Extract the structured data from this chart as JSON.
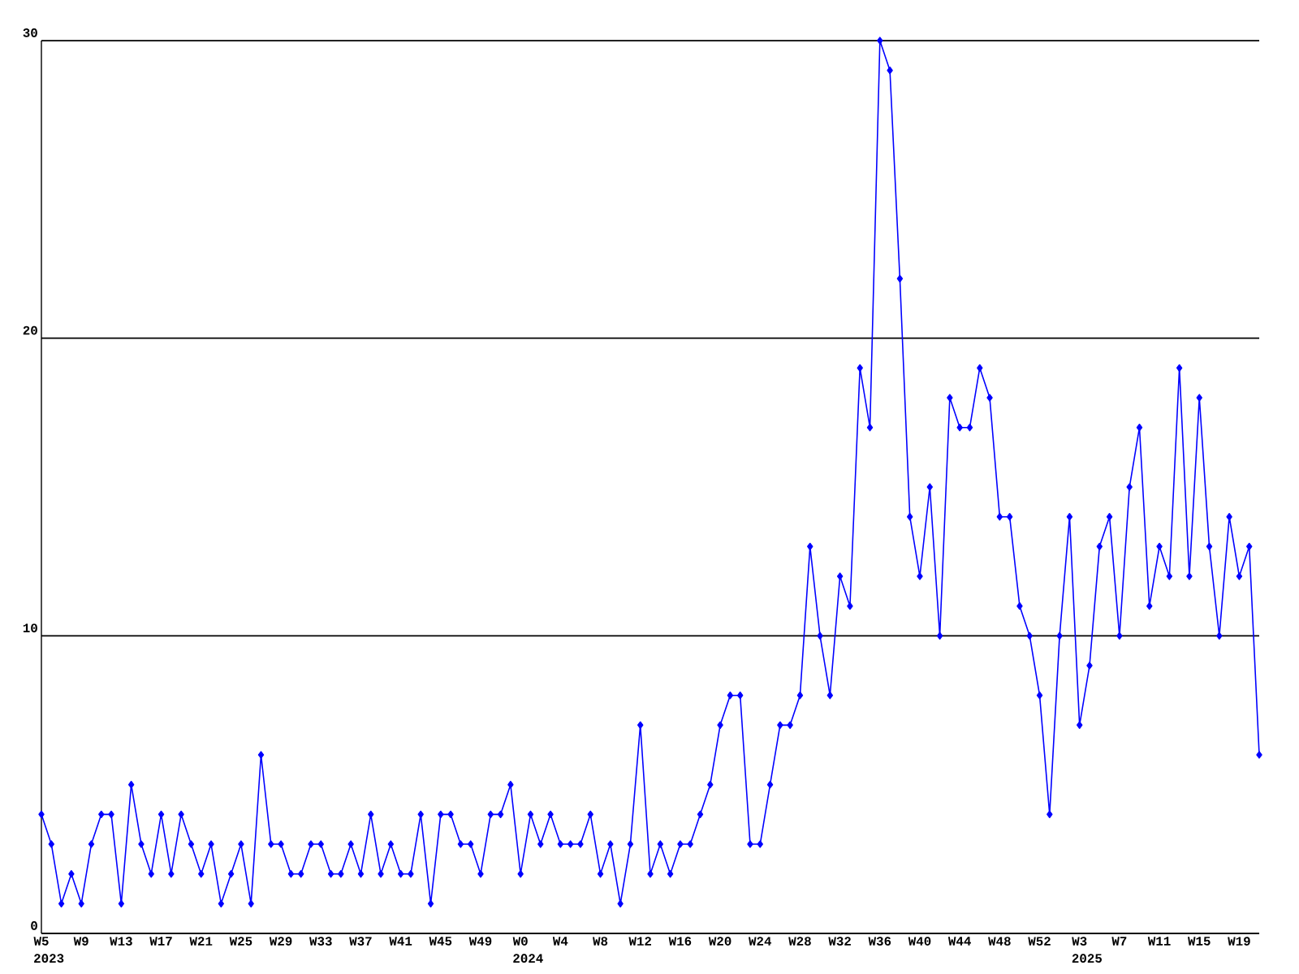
{
  "chart_data": {
    "type": "line",
    "categories": [
      "W5",
      null,
      null,
      null,
      "W9",
      null,
      null,
      null,
      "W13",
      null,
      null,
      null,
      "W17",
      null,
      null,
      null,
      "W21",
      null,
      null,
      null,
      "W25",
      null,
      null,
      null,
      "W29",
      null,
      null,
      null,
      "W33",
      null,
      null,
      null,
      "W37",
      null,
      null,
      null,
      "W41",
      null,
      null,
      null,
      "W45",
      null,
      null,
      null,
      "W49",
      null,
      null,
      null,
      "W0",
      null,
      null,
      null,
      "W4",
      null,
      null,
      null,
      "W8",
      null,
      null,
      null,
      "W12",
      null,
      null,
      null,
      "W16",
      null,
      null,
      null,
      "W20",
      null,
      null,
      null,
      "W24",
      null,
      null,
      null,
      "W28",
      null,
      null,
      null,
      "W32",
      null,
      null,
      null,
      "W36",
      null,
      null,
      null,
      "W40",
      null,
      null,
      null,
      "W44",
      null,
      null,
      null,
      "W48",
      null,
      null,
      null,
      "W52",
      null,
      null,
      null,
      "W3",
      null,
      null,
      null,
      "W7",
      null,
      null,
      null,
      "W11",
      null,
      null,
      null,
      "W15",
      null,
      null,
      null,
      "W19",
      null,
      null
    ],
    "values": [
      4,
      3,
      1,
      2,
      1,
      3,
      4,
      4,
      1,
      5,
      3,
      2,
      4,
      2,
      4,
      3,
      2,
      3,
      1,
      2,
      3,
      1,
      6,
      3,
      3,
      2,
      2,
      3,
      3,
      2,
      2,
      3,
      2,
      4,
      2,
      3,
      2,
      2,
      4,
      1,
      4,
      4,
      3,
      3,
      2,
      4,
      4,
      5,
      2,
      4,
      3,
      4,
      3,
      3,
      3,
      4,
      2,
      3,
      1,
      3,
      7,
      2,
      3,
      2,
      3,
      3,
      4,
      5,
      7,
      8,
      8,
      3,
      3,
      5,
      7,
      7,
      8,
      13,
      10,
      8,
      12,
      11,
      19,
      17,
      30,
      29,
      22,
      14,
      12,
      15,
      10,
      18,
      17,
      17,
      19,
      18,
      14,
      14,
      11,
      10,
      8,
      4,
      10,
      14,
      7,
      9,
      13,
      14,
      10,
      15,
      17,
      11,
      13,
      12,
      19,
      12,
      18,
      13,
      10,
      14,
      12,
      13,
      6
    ],
    "color": "#0000ff",
    "ylim": [
      0,
      30
    ],
    "yticks": [
      0,
      10,
      20,
      30
    ],
    "grid": "y",
    "marker": "diamond",
    "line_style": "solid",
    "annotations": [
      "2023",
      "2024",
      "2025"
    ]
  }
}
